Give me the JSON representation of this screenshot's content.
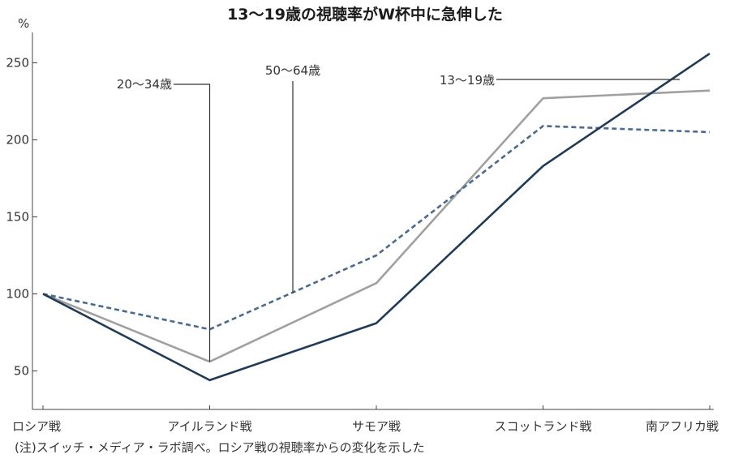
{
  "chart_data": {
    "type": "line",
    "title": "13〜19歳の視聴率がW杯中に急伸した",
    "ylabel": "%",
    "categories": [
      "ロシア戦",
      "アイルランド戦",
      "サモア戦",
      "スコットランド戦",
      "南アフリカ戦"
    ],
    "ylim": [
      25,
      275
    ],
    "yticks": [
      50,
      100,
      150,
      200,
      250
    ],
    "grid": false,
    "series": [
      {
        "name": "13〜19歳",
        "color": "#1f3b57",
        "dash": false,
        "values": [
          100,
          44,
          81,
          183,
          256
        ]
      },
      {
        "name": "20〜34歳",
        "color": "#a0a0a0",
        "dash": false,
        "values": [
          100,
          56,
          107,
          227,
          232
        ]
      },
      {
        "name": "50〜64歳",
        "color": "#4a6a8e",
        "dash": true,
        "values": [
          100,
          77,
          125,
          209,
          205
        ]
      }
    ],
    "note": "(注)スイッチ・メディア・ラボ調べ。ロシア戦の視聴率からの変化を示した"
  }
}
